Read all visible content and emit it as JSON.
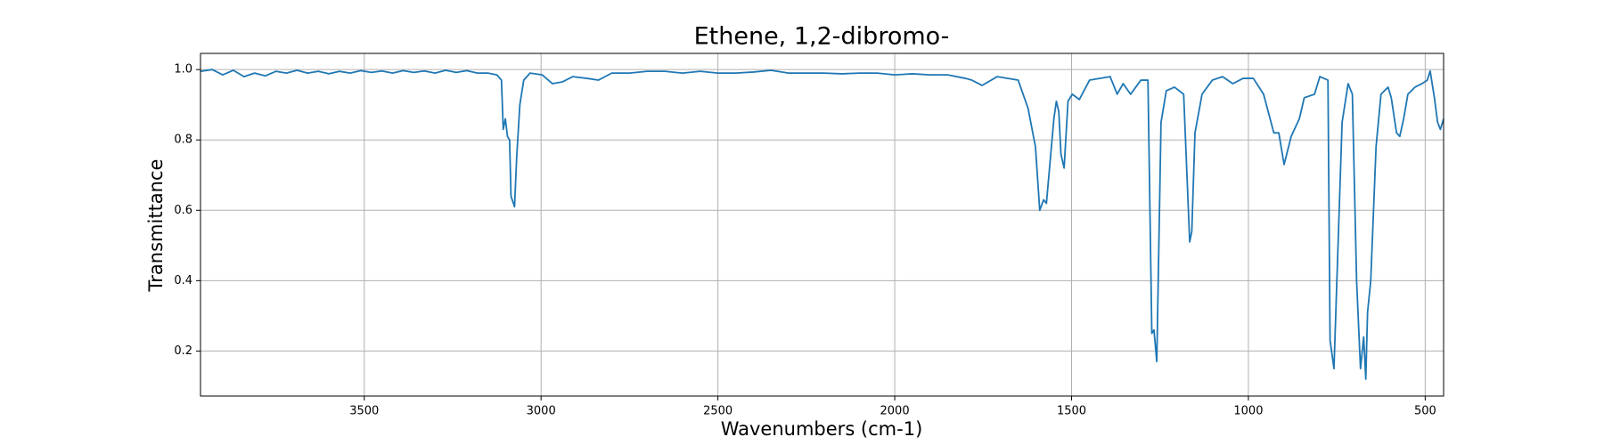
{
  "chart_data": {
    "type": "line",
    "title": "Ethene, 1,2-dibromo-",
    "x_label": "Wavenumbers (cm-1)",
    "y_label": "Transmittance",
    "color": "#1f77b4",
    "grid": true,
    "x_reversed": true,
    "xlim": [
      3963,
      448
    ],
    "ylim": [
      0.072,
      1.046
    ],
    "xticks": [
      3500,
      3000,
      2500,
      2000,
      1500,
      1000,
      500
    ],
    "yticks": [
      0.2,
      0.4,
      0.6,
      0.8,
      {
        "value": 1,
        "label": "1.0"
      }
    ],
    "x": [
      3963,
      3930,
      3900,
      3870,
      3840,
      3810,
      3780,
      3750,
      3720,
      3690,
      3660,
      3630,
      3600,
      3570,
      3540,
      3510,
      3480,
      3450,
      3420,
      3390,
      3360,
      3330,
      3300,
      3270,
      3240,
      3210,
      3180,
      3150,
      3125,
      3112,
      3107,
      3101,
      3095,
      3089,
      3085,
      3075,
      3069,
      3060,
      3049,
      3031,
      2997,
      2968,
      2940,
      2910,
      2870,
      2838,
      2800,
      2750,
      2700,
      2650,
      2600,
      2550,
      2500,
      2450,
      2400,
      2350,
      2300,
      2250,
      2200,
      2150,
      2100,
      2050,
      2000,
      1950,
      1900,
      1850,
      1800,
      1782,
      1753,
      1710,
      1651,
      1623,
      1602,
      1590,
      1579,
      1571,
      1550,
      1543,
      1536,
      1530,
      1521,
      1510,
      1498,
      1478,
      1449,
      1391,
      1371,
      1354,
      1333,
      1304,
      1284,
      1273,
      1267,
      1259,
      1247,
      1232,
      1209,
      1183,
      1166,
      1160,
      1151,
      1131,
      1102,
      1073,
      1044,
      1015,
      986,
      957,
      928,
      914,
      899,
      879,
      856,
      842,
      813,
      798,
      775,
      769,
      758,
      735,
      718,
      706,
      694,
      683,
      674,
      668,
      663,
      654,
      639,
      625,
      605,
      596,
      581,
      572,
      561,
      549,
      529,
      509,
      494,
      486,
      474,
      465,
      457,
      448
    ],
    "values": [
      0.995,
      1.0,
      0.985,
      0.998,
      0.98,
      0.99,
      0.982,
      0.995,
      0.99,
      0.998,
      0.99,
      0.995,
      0.988,
      0.995,
      0.99,
      0.997,
      0.992,
      0.996,
      0.99,
      0.997,
      0.992,
      0.996,
      0.99,
      0.998,
      0.992,
      0.997,
      0.99,
      0.99,
      0.985,
      0.97,
      0.83,
      0.86,
      0.81,
      0.8,
      0.64,
      0.61,
      0.75,
      0.9,
      0.97,
      0.99,
      0.985,
      0.96,
      0.965,
      0.98,
      0.975,
      0.97,
      0.99,
      0.99,
      0.995,
      0.995,
      0.99,
      0.995,
      0.99,
      0.99,
      0.993,
      0.998,
      0.99,
      0.99,
      0.99,
      0.988,
      0.99,
      0.99,
      0.985,
      0.988,
      0.985,
      0.985,
      0.975,
      0.97,
      0.955,
      0.98,
      0.97,
      0.89,
      0.78,
      0.6,
      0.63,
      0.62,
      0.86,
      0.91,
      0.88,
      0.76,
      0.72,
      0.91,
      0.93,
      0.915,
      0.97,
      0.98,
      0.93,
      0.96,
      0.93,
      0.97,
      0.97,
      0.25,
      0.26,
      0.17,
      0.85,
      0.94,
      0.95,
      0.93,
      0.51,
      0.54,
      0.82,
      0.93,
      0.97,
      0.98,
      0.96,
      0.975,
      0.975,
      0.93,
      0.82,
      0.82,
      0.73,
      0.81,
      0.86,
      0.92,
      0.93,
      0.98,
      0.97,
      0.23,
      0.15,
      0.85,
      0.96,
      0.93,
      0.4,
      0.15,
      0.24,
      0.12,
      0.31,
      0.4,
      0.78,
      0.93,
      0.95,
      0.92,
      0.82,
      0.81,
      0.86,
      0.93,
      0.95,
      0.96,
      0.97,
      0.996,
      0.92,
      0.85,
      0.83,
      0.86
    ]
  }
}
